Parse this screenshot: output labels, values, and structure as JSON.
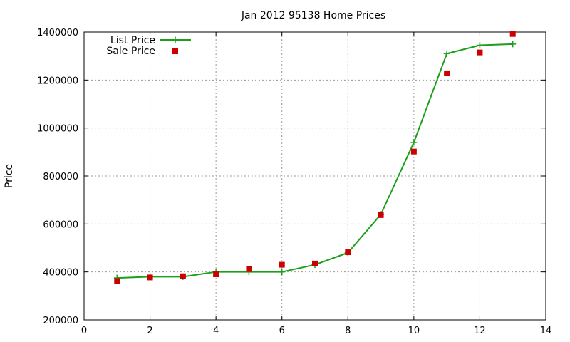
{
  "chart_data": {
    "type": "line",
    "title": "Jan 2012 95138 Home Prices",
    "xlabel": "",
    "ylabel": "Price",
    "xlim": [
      0,
      14
    ],
    "ylim": [
      200000,
      1400000
    ],
    "x_ticks": [
      "0",
      "2",
      "4",
      "6",
      "8",
      "10",
      "12",
      "14"
    ],
    "x_tick_values": [
      0,
      2,
      4,
      6,
      8,
      10,
      12,
      14
    ],
    "y_ticks": [
      "200000",
      "400000",
      "600000",
      "800000",
      "1000000",
      "1200000",
      "1400000"
    ],
    "y_tick_values": [
      200000,
      400000,
      600000,
      800000,
      1000000,
      1200000,
      1400000
    ],
    "grid": true,
    "legend_position": "top-left",
    "series": [
      {
        "name": "List Price",
        "style": "line-with-plus-markers",
        "color": "#1aa01a",
        "x": [
          1,
          2,
          3,
          4,
          5,
          6,
          7,
          8,
          9,
          10,
          11,
          12,
          13
        ],
        "y": [
          375000,
          380000,
          380000,
          400000,
          400000,
          400000,
          430000,
          480000,
          640000,
          940000,
          1310000,
          1345000,
          1350000
        ]
      },
      {
        "name": "Sale Price",
        "style": "square-markers",
        "color": "#cc0000",
        "x": [
          1,
          2,
          3,
          4,
          5,
          6,
          7,
          8,
          9,
          10,
          11,
          12,
          13
        ],
        "y": [
          362000,
          377000,
          382000,
          390000,
          412000,
          430000,
          435000,
          482000,
          637000,
          902000,
          1228000,
          1315000,
          1392000
        ]
      }
    ]
  }
}
